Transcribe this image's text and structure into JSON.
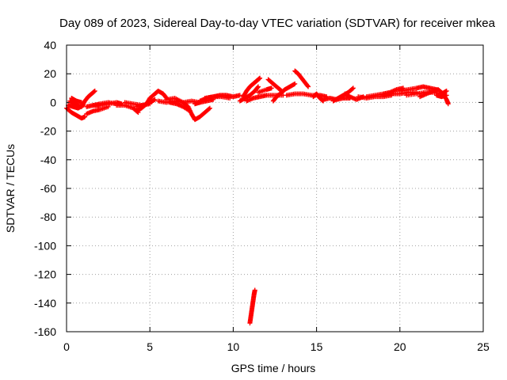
{
  "chart_data": {
    "type": "scatter",
    "title": "Day 089 of 2023, Sidereal Day-to-day VTEC variation (SDTVAR) for receiver mkea",
    "xlabel": "GPS time / hours",
    "ylabel": "SDTVAR / TECUs",
    "xlim": [
      0,
      25
    ],
    "ylim": [
      -160,
      40
    ],
    "x_ticks": [
      0,
      5,
      10,
      15,
      20,
      25
    ],
    "y_ticks": [
      40,
      20,
      0,
      -20,
      -40,
      -60,
      -80,
      -100,
      -120,
      -140,
      -160
    ],
    "x_tick_labels": [
      "0",
      "5",
      "10",
      "15",
      "20",
      "25"
    ],
    "y_tick_labels": [
      "40",
      "20",
      "0",
      "-20",
      "-40",
      "-60",
      "-80",
      "-100",
      "-120",
      "-140",
      "-160"
    ],
    "grid": true,
    "marker": "+",
    "marker_color": "#ff0000",
    "series": [
      {
        "name": "sdtvar",
        "segments": [
          [
            [
              0.0,
              -4
            ],
            [
              0.3,
              -7
            ],
            [
              0.6,
              -9
            ],
            [
              0.9,
              -11
            ],
            [
              1.1,
              -10
            ]
          ],
          [
            [
              0.1,
              -2
            ],
            [
              0.4,
              -3
            ],
            [
              0.7,
              -4
            ],
            [
              1.0,
              -2
            ]
          ],
          [
            [
              0.2,
              1
            ],
            [
              0.5,
              -1
            ],
            [
              0.8,
              -3
            ]
          ],
          [
            [
              0.3,
              3
            ],
            [
              0.6,
              1
            ],
            [
              0.9,
              0
            ]
          ],
          [
            [
              0.9,
              -3
            ],
            [
              1.1,
              1
            ],
            [
              1.3,
              4
            ],
            [
              1.5,
              6
            ],
            [
              1.7,
              8
            ]
          ],
          [
            [
              1.2,
              -8
            ],
            [
              1.6,
              -6
            ],
            [
              2.0,
              -5
            ],
            [
              2.5,
              -3
            ]
          ],
          [
            [
              1.2,
              -3
            ],
            [
              1.6,
              -2
            ],
            [
              2.0,
              -2
            ],
            [
              2.5,
              -1
            ],
            [
              3.0,
              0
            ],
            [
              3.3,
              -1
            ]
          ],
          [
            [
              1.6,
              -2
            ],
            [
              2.0,
              -1
            ],
            [
              2.5,
              0
            ],
            [
              3.0,
              -1
            ]
          ],
          [
            [
              3.0,
              -2
            ],
            [
              3.5,
              -2
            ],
            [
              4.0,
              -4
            ],
            [
              4.3,
              -7
            ]
          ],
          [
            [
              3.5,
              0
            ],
            [
              4.0,
              -1
            ],
            [
              4.5,
              -2
            ],
            [
              5.0,
              -1
            ]
          ],
          [
            [
              4.2,
              -3
            ],
            [
              4.6,
              -2
            ],
            [
              5.0,
              0
            ],
            [
              5.3,
              2
            ]
          ],
          [
            [
              4.2,
              -6
            ],
            [
              4.5,
              -4
            ],
            [
              4.8,
              -1
            ],
            [
              5.0,
              3
            ],
            [
              5.3,
              6
            ],
            [
              5.5,
              8
            ],
            [
              5.8,
              6
            ],
            [
              6.0,
              3
            ]
          ],
          [
            [
              5.5,
              1
            ],
            [
              6.0,
              0
            ],
            [
              6.5,
              1
            ],
            [
              7.0,
              0
            ],
            [
              7.5,
              1
            ],
            [
              8.0,
              0
            ]
          ],
          [
            [
              6.0,
              2
            ],
            [
              6.5,
              3
            ],
            [
              7.0,
              0
            ],
            [
              7.3,
              -3
            ],
            [
              7.5,
              -8
            ],
            [
              7.7,
              -12
            ],
            [
              8.0,
              -10
            ],
            [
              8.3,
              -7
            ],
            [
              8.6,
              -4
            ]
          ],
          [
            [
              6.2,
              0
            ],
            [
              6.6,
              -1
            ],
            [
              7.0,
              -3
            ],
            [
              7.4,
              -6
            ]
          ],
          [
            [
              7.7,
              -1
            ],
            [
              8.0,
              0
            ],
            [
              8.4,
              1
            ],
            [
              8.8,
              2
            ]
          ],
          [
            [
              8.0,
              1
            ],
            [
              8.4,
              3
            ],
            [
              8.8,
              4
            ],
            [
              9.2,
              5
            ],
            [
              9.6,
              5
            ],
            [
              10.0,
              4
            ],
            [
              10.4,
              5
            ]
          ],
          [
            [
              8.3,
              3
            ],
            [
              8.8,
              4
            ],
            [
              9.3,
              4
            ],
            [
              9.8,
              3
            ]
          ],
          [
            [
              10.4,
              1
            ],
            [
              10.7,
              3
            ],
            [
              11.0,
              5
            ],
            [
              11.3,
              8
            ],
            [
              11.5,
              11
            ]
          ],
          [
            [
              10.6,
              4
            ],
            [
              10.8,
              8
            ],
            [
              11.0,
              11
            ],
            [
              11.2,
              13
            ],
            [
              11.4,
              15
            ],
            [
              11.6,
              17
            ]
          ],
          [
            [
              10.8,
              1
            ],
            [
              11.2,
              3
            ],
            [
              11.6,
              4
            ],
            [
              12.0,
              5
            ],
            [
              12.5,
              5
            ],
            [
              13.0,
              5
            ]
          ],
          [
            [
              11.5,
              7
            ],
            [
              12.0,
              9
            ],
            [
              12.3,
              10
            ]
          ],
          [
            [
              12.1,
              16
            ],
            [
              12.4,
              13
            ],
            [
              12.7,
              10
            ],
            [
              12.9,
              8
            ]
          ],
          [
            [
              12.4,
              1
            ],
            [
              12.6,
              4
            ],
            [
              12.9,
              7
            ],
            [
              13.1,
              9
            ],
            [
              13.4,
              11
            ],
            [
              13.7,
              13
            ]
          ],
          [
            [
              13.7,
              22
            ],
            [
              13.9,
              20
            ],
            [
              14.1,
              17
            ],
            [
              14.3,
              14
            ],
            [
              14.5,
              11
            ]
          ],
          [
            [
              13.2,
              5
            ],
            [
              13.7,
              6
            ],
            [
              14.2,
              6
            ],
            [
              14.7,
              5
            ],
            [
              15.2,
              5
            ],
            [
              15.6,
              4
            ]
          ],
          [
            [
              14.8,
              4
            ],
            [
              15.0,
              6
            ],
            [
              15.2,
              3
            ],
            [
              15.4,
              1
            ]
          ],
          [
            [
              15.4,
              2
            ],
            [
              15.8,
              3
            ],
            [
              16.2,
              2
            ],
            [
              16.6,
              3
            ],
            [
              17.0,
              3
            ]
          ],
          [
            [
              16.0,
              1
            ],
            [
              16.3,
              3
            ],
            [
              16.6,
              5
            ],
            [
              16.9,
              7
            ],
            [
              17.2,
              10
            ]
          ],
          [
            [
              16.7,
              6
            ],
            [
              17.0,
              4
            ],
            [
              17.4,
              2
            ],
            [
              17.8,
              4
            ]
          ],
          [
            [
              17.5,
              4
            ],
            [
              18.0,
              3
            ],
            [
              18.5,
              4
            ],
            [
              19.0,
              4
            ],
            [
              19.5,
              5
            ]
          ],
          [
            [
              18.0,
              4
            ],
            [
              18.5,
              5
            ],
            [
              19.0,
              6
            ],
            [
              19.4,
              7
            ],
            [
              19.8,
              9
            ],
            [
              20.2,
              10
            ]
          ],
          [
            [
              19.0,
              5
            ],
            [
              19.5,
              6
            ],
            [
              20.0,
              6
            ],
            [
              20.5,
              7
            ],
            [
              21.0,
              7
            ]
          ],
          [
            [
              20.0,
              8
            ],
            [
              20.5,
              9
            ],
            [
              21.0,
              10
            ],
            [
              21.4,
              11
            ],
            [
              21.8,
              10
            ],
            [
              22.2,
              9
            ]
          ],
          [
            [
              20.4,
              5
            ],
            [
              21.0,
              6
            ],
            [
              21.5,
              7
            ],
            [
              22.0,
              7
            ],
            [
              22.5,
              6
            ],
            [
              22.8,
              8
            ]
          ],
          [
            [
              21.2,
              4
            ],
            [
              21.6,
              6
            ],
            [
              22.0,
              8
            ],
            [
              22.3,
              9
            ],
            [
              22.6,
              6
            ],
            [
              22.8,
              2
            ],
            [
              22.9,
              -1
            ]
          ],
          [
            [
              22.2,
              5
            ],
            [
              22.5,
              4
            ],
            [
              22.8,
              5
            ]
          ],
          [
            [
              11.0,
              -154
            ],
            [
              11.05,
              -150
            ],
            [
              11.1,
              -146
            ],
            [
              11.15,
              -142
            ],
            [
              11.2,
              -138
            ],
            [
              11.25,
              -134
            ],
            [
              11.3,
              -131
            ]
          ]
        ]
      }
    ]
  }
}
